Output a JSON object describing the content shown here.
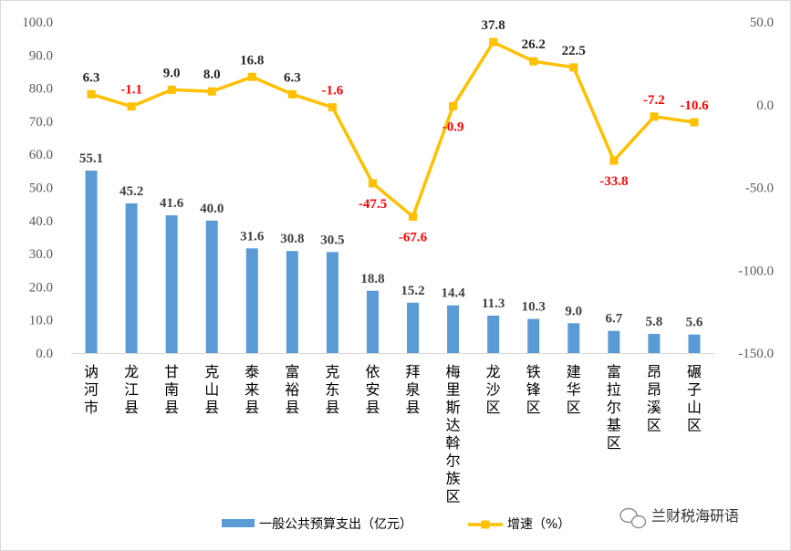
{
  "chart_data": {
    "type": "bar+line",
    "categories": [
      "讷河市",
      "龙江县",
      "甘南县",
      "克山县",
      "泰来县",
      "富裕县",
      "克东县",
      "依安县",
      "拜泉县",
      "梅里斯达斡尔族区",
      "龙沙区",
      "铁锋区",
      "建华区",
      "富拉尔基区",
      "昂昂溪区",
      "碾子山区"
    ],
    "series": [
      {
        "name": "一般公共预算支出（亿元）",
        "type": "bar",
        "axis": "left",
        "color": "#5b9bd5",
        "values": [
          55.1,
          45.2,
          41.6,
          40.0,
          31.6,
          30.8,
          30.5,
          18.8,
          15.2,
          14.4,
          11.3,
          10.3,
          9.0,
          6.7,
          5.8,
          5.6
        ],
        "labels": [
          "55.1",
          "45.2",
          "41.6",
          "40.0",
          "31.6",
          "30.8",
          "30.5",
          "18.8",
          "15.2",
          "14.4",
          "11.3",
          "10.3",
          "9.0",
          "6.7",
          "5.8",
          "5.6"
        ]
      },
      {
        "name": "增速（%）",
        "type": "line",
        "axis": "right",
        "color": "#ffc000",
        "values": [
          6.3,
          -1.1,
          9.0,
          8.0,
          16.8,
          6.3,
          -1.6,
          -47.5,
          -67.6,
          -0.9,
          37.8,
          26.2,
          22.5,
          -33.8,
          -7.2,
          -10.6
        ],
        "labels": [
          "6.3",
          "-1.1",
          "9.0",
          "8.0",
          "16.8",
          "6.3",
          "-1.6",
          "-47.5",
          "-67.6",
          "-0.9",
          "37.8",
          "26.2",
          "22.5",
          "-33.8",
          "-7.2",
          "-10.6"
        ]
      }
    ],
    "y_left": {
      "min": 0,
      "max": 100,
      "ticks": [
        "100.0",
        "90.0",
        "80.0",
        "70.0",
        "60.0",
        "50.0",
        "40.0",
        "30.0",
        "20.0",
        "10.0",
        "0.0"
      ]
    },
    "y_right": {
      "min": -150,
      "max": 50,
      "ticks": [
        "50.0",
        "0.0",
        "-50.0",
        "-100.0",
        "-150.0"
      ]
    },
    "positive_label_color": "#262626",
    "negative_label_color": "#ff0000",
    "grid": false,
    "legend_position": "bottom"
  },
  "watermark": {
    "text": "兰财税海研语",
    "icon": "wechat-icon"
  }
}
